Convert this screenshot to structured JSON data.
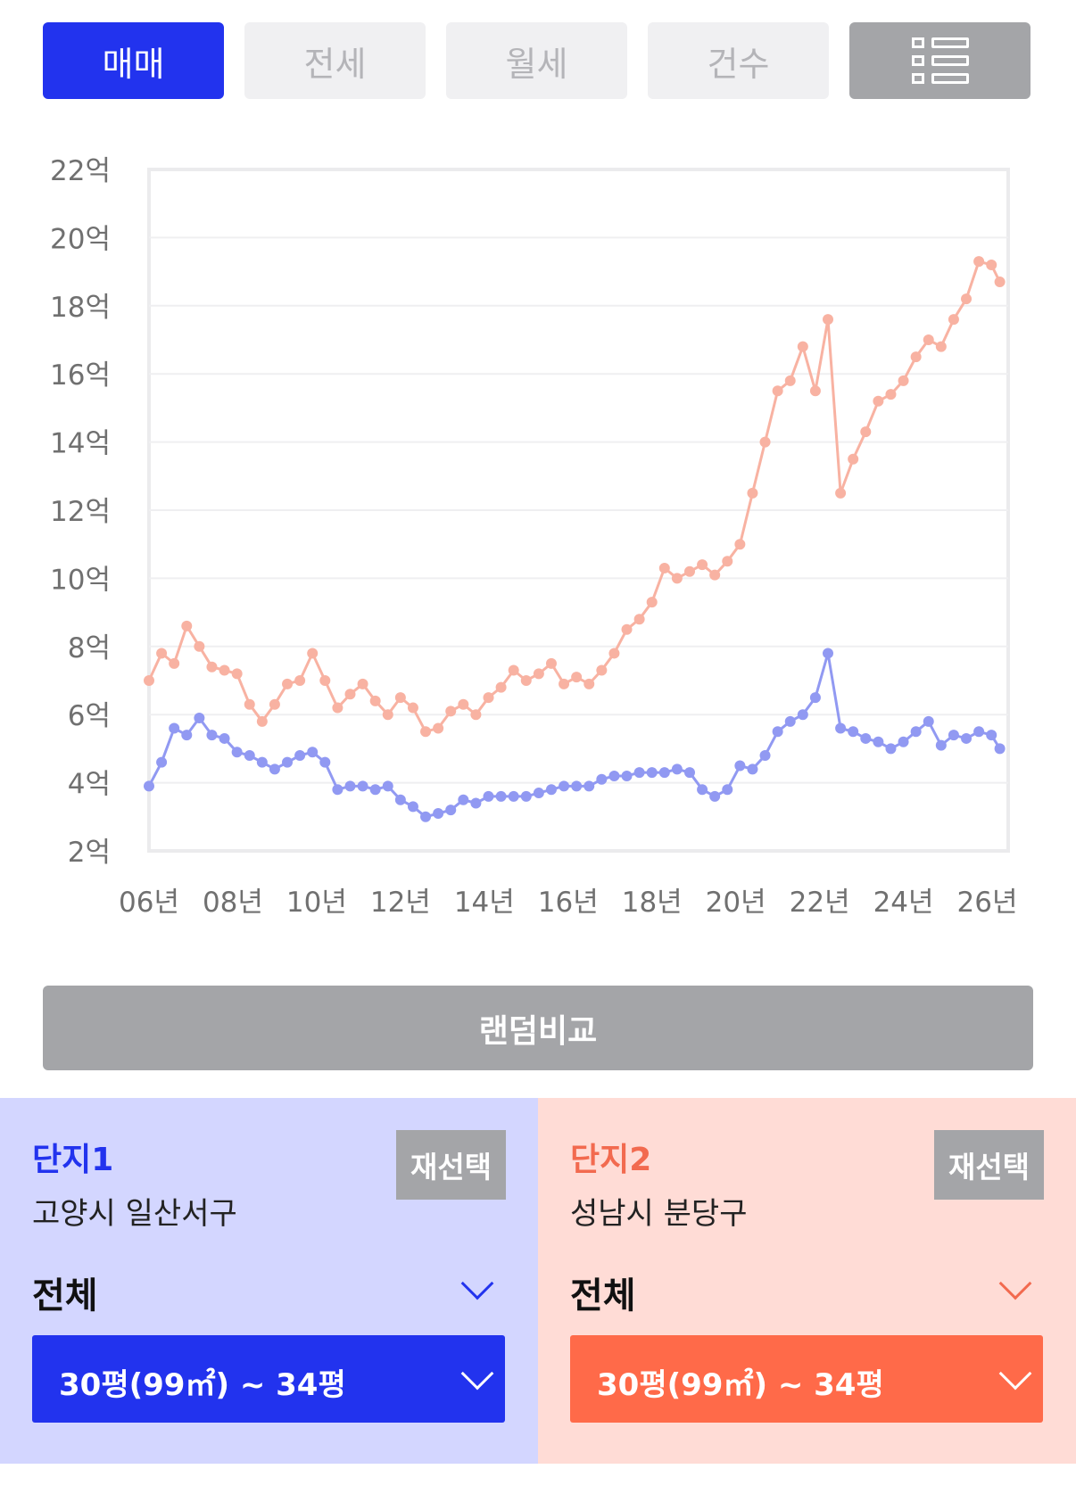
{
  "tabs": [
    {
      "label": "매매",
      "active": true
    },
    {
      "label": "전세",
      "active": false
    },
    {
      "label": "월세",
      "active": false
    },
    {
      "label": "건수",
      "active": false
    }
  ],
  "list_icon": "list-view-icon",
  "random_compare_label": "랜덤비교",
  "chart_data": {
    "type": "line",
    "title": "",
    "xlabel": "",
    "ylabel": "",
    "y_ticks": [
      "22억",
      "20억",
      "18억",
      "16억",
      "14억",
      "12억",
      "10억",
      "8억",
      "6억",
      "4억",
      "2억"
    ],
    "x_ticks": [
      "06년",
      "08년",
      "10년",
      "12년",
      "14년",
      "16년",
      "18년",
      "20년",
      "22년",
      "24년",
      "26년"
    ],
    "ylim": [
      2,
      22
    ],
    "xlim": [
      2006,
      2026.5
    ],
    "grid": true,
    "series": [
      {
        "color": "#f8b2a2",
        "x": [
          2006.0,
          2006.3,
          2006.6,
          2006.9,
          2007.2,
          2007.5,
          2007.8,
          2008.1,
          2008.4,
          2008.7,
          2009.0,
          2009.3,
          2009.6,
          2009.9,
          2010.2,
          2010.5,
          2010.8,
          2011.1,
          2011.4,
          2011.7,
          2012.0,
          2012.3,
          2012.6,
          2012.9,
          2013.2,
          2013.5,
          2013.8,
          2014.1,
          2014.4,
          2014.7,
          2015.0,
          2015.3,
          2015.6,
          2015.9,
          2016.2,
          2016.5,
          2016.8,
          2017.1,
          2017.4,
          2017.7,
          2018.0,
          2018.3,
          2018.6,
          2018.9,
          2019.2,
          2019.5,
          2019.8,
          2020.1,
          2020.4,
          2020.7,
          2021.0,
          2021.3,
          2021.6,
          2021.9,
          2022.2,
          2022.5,
          2022.8,
          2023.1,
          2023.4,
          2023.7,
          2024.0,
          2024.3,
          2024.6,
          2024.9,
          2025.2,
          2025.5,
          2025.8,
          2026.1,
          2026.3
        ],
        "values": [
          7.0,
          7.8,
          7.5,
          8.6,
          8.0,
          7.4,
          7.3,
          7.2,
          6.3,
          5.8,
          6.3,
          6.9,
          7.0,
          7.8,
          7.0,
          6.2,
          6.6,
          6.9,
          6.4,
          6.0,
          6.5,
          6.2,
          5.5,
          5.6,
          6.1,
          6.3,
          6.0,
          6.5,
          6.8,
          7.3,
          7.0,
          7.2,
          7.5,
          6.9,
          7.1,
          6.9,
          7.3,
          7.8,
          8.5,
          8.8,
          9.3,
          10.3,
          10.0,
          10.2,
          10.4,
          10.1,
          10.5,
          11.0,
          12.5,
          14.0,
          15.5,
          15.8,
          16.8,
          15.5,
          17.6,
          12.5,
          13.5,
          14.3,
          15.2,
          15.4,
          15.8,
          16.5,
          17.0,
          16.8,
          17.6,
          18.2,
          19.3,
          19.2,
          18.7
        ]
      },
      {
        "color": "#9199f2",
        "x": [
          2006.0,
          2006.3,
          2006.6,
          2006.9,
          2007.2,
          2007.5,
          2007.8,
          2008.1,
          2008.4,
          2008.7,
          2009.0,
          2009.3,
          2009.6,
          2009.9,
          2010.2,
          2010.5,
          2010.8,
          2011.1,
          2011.4,
          2011.7,
          2012.0,
          2012.3,
          2012.6,
          2012.9,
          2013.2,
          2013.5,
          2013.8,
          2014.1,
          2014.4,
          2014.7,
          2015.0,
          2015.3,
          2015.6,
          2015.9,
          2016.2,
          2016.5,
          2016.8,
          2017.1,
          2017.4,
          2017.7,
          2018.0,
          2018.3,
          2018.6,
          2018.9,
          2019.2,
          2019.5,
          2019.8,
          2020.1,
          2020.4,
          2020.7,
          2021.0,
          2021.3,
          2021.6,
          2021.9,
          2022.2,
          2022.5,
          2022.8,
          2023.1,
          2023.4,
          2023.7,
          2024.0,
          2024.3,
          2024.6,
          2024.9,
          2025.2,
          2025.5,
          2025.8,
          2026.1,
          2026.3
        ],
        "values": [
          3.9,
          4.6,
          5.6,
          5.4,
          5.9,
          5.4,
          5.3,
          4.9,
          4.8,
          4.6,
          4.4,
          4.6,
          4.8,
          4.9,
          4.6,
          3.8,
          3.9,
          3.9,
          3.8,
          3.9,
          3.5,
          3.3,
          3.0,
          3.1,
          3.2,
          3.5,
          3.4,
          3.6,
          3.6,
          3.6,
          3.6,
          3.7,
          3.8,
          3.9,
          3.9,
          3.9,
          4.1,
          4.2,
          4.2,
          4.3,
          4.3,
          4.3,
          4.4,
          4.3,
          3.8,
          3.6,
          3.8,
          4.5,
          4.4,
          4.8,
          5.5,
          5.8,
          6.0,
          6.5,
          7.8,
          5.6,
          5.5,
          5.3,
          5.2,
          5.0,
          5.2,
          5.5,
          5.8,
          5.1,
          5.4,
          5.3,
          5.5,
          5.4,
          5.0
        ]
      }
    ]
  },
  "panel1": {
    "title": "단지1",
    "address": "고양시 일산서구",
    "reselect_label": "재선택",
    "filter_label": "전체",
    "size_label": "30평(99㎡) ~ 34평",
    "accent": "#2233ee"
  },
  "panel2": {
    "title": "단지2",
    "address": "성남시 분당구",
    "reselect_label": "재선택",
    "filter_label": "전체",
    "size_label": "30평(99㎡) ~ 34평",
    "accent": "#ff6a49"
  }
}
